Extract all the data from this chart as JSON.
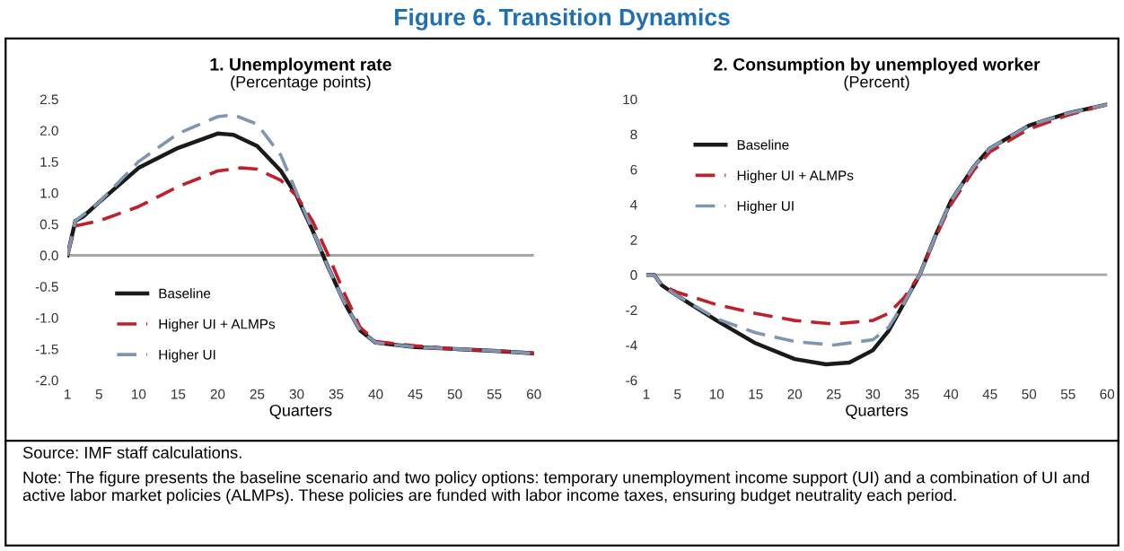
{
  "chart_data": [
    {
      "type": "other",
      "title": "Figure 6. Transition Dynamics",
      "color": "#1f6fb5"
    },
    {
      "type": "line",
      "title": "1. Unemployment rate",
      "subtitle": "(Percentage points)",
      "xlabel": "Quarters",
      "xlim": [
        1,
        60
      ],
      "xticks": [
        1,
        5,
        10,
        15,
        20,
        25,
        30,
        35,
        40,
        45,
        50,
        55,
        60
      ],
      "ylim": [
        -2.0,
        2.5
      ],
      "yticks": [
        {
          "value": -2.0,
          "label": "-2.0"
        },
        {
          "value": -1.5,
          "label": "-1.5"
        },
        {
          "value": -1.0,
          "label": "-1.0"
        },
        {
          "value": -0.5,
          "label": "-0.5"
        },
        {
          "value": 0,
          "label": "0.0"
        },
        {
          "value": 0.5,
          "label": "0.5"
        },
        {
          "value": 1.0,
          "label": "1.0"
        },
        {
          "value": 1.5,
          "label": "1.5"
        },
        {
          "value": 2.0,
          "label": "2.0"
        },
        {
          "value": 2.5,
          "label": "2.5"
        }
      ],
      "legend": "bottom left",
      "grid": false,
      "ref_lines": [
        {
          "axis": "y",
          "value": 0,
          "color": "#a6a6a6"
        }
      ],
      "series": [
        {
          "name": "Baseline",
          "color": "#1a1a1a",
          "line_style": "solid",
          "x": [
            1,
            2,
            3,
            5,
            10,
            15,
            20,
            22,
            25,
            28,
            30,
            32,
            34,
            36,
            38,
            40,
            45,
            50,
            55,
            60
          ],
          "values": [
            0,
            0.55,
            0.62,
            0.85,
            1.4,
            1.72,
            1.95,
            1.93,
            1.75,
            1.35,
            0.95,
            0.4,
            -0.2,
            -0.75,
            -1.2,
            -1.4,
            -1.47,
            -1.5,
            -1.53,
            -1.57
          ]
        },
        {
          "name": "Higher UI + ALMPs",
          "color": "#c0202a",
          "line_style": "dashed",
          "x": [
            1,
            2,
            5,
            10,
            15,
            20,
            23,
            25,
            28,
            30,
            32,
            34,
            36,
            38,
            40,
            45,
            50,
            55,
            60
          ],
          "values": [
            0,
            0.47,
            0.55,
            0.78,
            1.1,
            1.35,
            1.4,
            1.38,
            1.2,
            0.95,
            0.55,
            0,
            -0.6,
            -1.15,
            -1.38,
            -1.45,
            -1.5,
            -1.53,
            -1.57
          ]
        },
        {
          "name": "Higher UI",
          "color": "#7f96b2",
          "line_style": "dashed",
          "x": [
            1,
            2,
            5,
            10,
            15,
            20,
            22,
            25,
            28,
            30,
            32,
            34,
            36,
            38,
            40,
            45,
            50,
            55,
            60
          ],
          "values": [
            0,
            0.55,
            0.85,
            1.5,
            1.95,
            2.22,
            2.25,
            2.1,
            1.6,
            1.0,
            0.4,
            -0.2,
            -0.75,
            -1.2,
            -1.4,
            -1.47,
            -1.5,
            -1.53,
            -1.57
          ]
        }
      ]
    },
    {
      "type": "line",
      "title": "2. Consumption by unemployed worker",
      "subtitle": "(Percent)",
      "xlabel": "Quarters",
      "xlim": [
        1,
        60
      ],
      "xticks": [
        1,
        5,
        10,
        15,
        20,
        25,
        30,
        35,
        40,
        45,
        50,
        55,
        60
      ],
      "ylim": [
        -6,
        10
      ],
      "yticks": [
        -6,
        -4,
        -2,
        0,
        2,
        4,
        6,
        8,
        10
      ],
      "legend": "top left",
      "grid": false,
      "ref_lines": [
        {
          "axis": "y",
          "value": 0,
          "color": "#a6a6a6"
        }
      ],
      "series": [
        {
          "name": "Baseline",
          "color": "#1a1a1a",
          "line_style": "solid",
          "x": [
            1,
            2,
            3,
            5,
            10,
            15,
            20,
            24,
            27,
            30,
            32,
            34,
            36,
            38,
            40,
            43,
            45,
            50,
            55,
            60
          ],
          "values": [
            0,
            0,
            -0.6,
            -1.2,
            -2.6,
            -3.9,
            -4.8,
            -5.1,
            -5.0,
            -4.3,
            -3.2,
            -1.6,
            0,
            2.2,
            4.2,
            6.2,
            7.2,
            8.5,
            9.2,
            9.7
          ]
        },
        {
          "name": "Higher UI + ALMPs",
          "color": "#c0202a",
          "line_style": "dashed",
          "x": [
            1,
            2,
            3,
            5,
            10,
            15,
            20,
            25,
            30,
            32,
            34,
            36,
            38,
            40,
            43,
            45,
            50,
            55,
            60
          ],
          "values": [
            0,
            0,
            -0.6,
            -1.0,
            -1.7,
            -2.2,
            -2.6,
            -2.8,
            -2.6,
            -2.2,
            -1.3,
            0,
            2.1,
            4.0,
            6.0,
            7.0,
            8.3,
            9.1,
            9.7
          ]
        },
        {
          "name": "Higher UI",
          "color": "#7f96b2",
          "line_style": "dashed",
          "x": [
            1,
            2,
            3,
            5,
            10,
            15,
            20,
            25,
            30,
            32,
            34,
            36,
            38,
            40,
            43,
            45,
            50,
            55,
            60
          ],
          "values": [
            0,
            0,
            -0.6,
            -1.2,
            -2.5,
            -3.3,
            -3.8,
            -4.0,
            -3.7,
            -3.0,
            -1.6,
            0,
            2.2,
            4.2,
            6.2,
            7.2,
            8.5,
            9.2,
            9.7
          ]
        }
      ]
    },
    {
      "type": "other",
      "annotations": [
        "Source: IMF staff calculations.",
        "Note: The figure presents the baseline scenario and two policy options: temporary unemployment income support (UI) and a combination of UI and active labor market policies (ALMPs). These policies are funded with labor income taxes, ensuring budget neutrality each period."
      ]
    }
  ]
}
